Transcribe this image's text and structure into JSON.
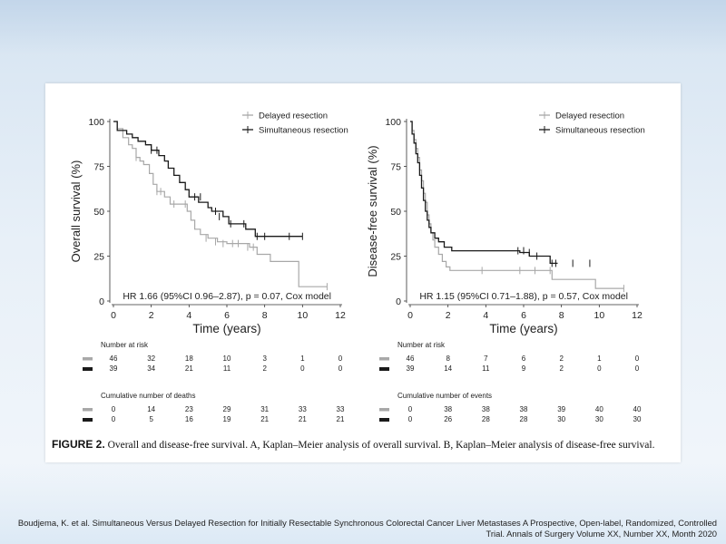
{
  "caption": {
    "figure_label": "FIGURE 2.",
    "text": "Overall and disease-free survival. A, Kaplan–Meier analysis of overall survival. B, Kaplan–Meier analysis of disease-free survival."
  },
  "citation": {
    "line1": "Boudjema, K. et al. Simultaneous Versus Delayed Resection for Initially Resectable Synchronous Colorectal Cancer Liver Metastases A Prospective, Open-label, Randomized, Controlled",
    "line2": "Trial. Annals of Surgery   Volume XX, Number XX, Month 2020"
  },
  "colors": {
    "delayed": "#a8a8a8",
    "simultaneous": "#1a1a1a",
    "background": "#dbe7f3"
  },
  "chart_data": [
    {
      "type": "line",
      "step": true,
      "xlabel": "Time (years)",
      "ylabel": "Overall survival (%)",
      "xlim": [
        0,
        12
      ],
      "ylim": [
        0,
        100
      ],
      "xticks": [
        0,
        2,
        4,
        6,
        8,
        10,
        12
      ],
      "yticks": [
        0,
        25,
        50,
        75,
        100
      ],
      "legend": {
        "position": "top-right",
        "entries": [
          "Delayed resection",
          "Simultaneous resection"
        ]
      },
      "annotation": "HR 1.66  (95%CI 0.96–2.87), p = 0.07, Cox model",
      "series": [
        {
          "name": "Delayed resection",
          "x": [
            0,
            0.2,
            0.5,
            0.8,
            1.0,
            1.2,
            1.4,
            1.6,
            1.9,
            2.1,
            2.3,
            2.7,
            3.0,
            3.6,
            3.9,
            4.1,
            4.3,
            4.6,
            5.0,
            5.5,
            6.0,
            6.8,
            7.2,
            7.6,
            8.3,
            9.0,
            9.8,
            11.3
          ],
          "y": [
            100,
            96,
            91,
            87,
            85,
            80,
            78,
            76,
            71,
            65,
            61,
            58,
            54,
            54,
            50,
            45,
            40,
            37,
            35,
            33,
            32,
            32,
            30,
            26,
            22,
            22,
            8,
            8
          ],
          "censor_x": [
            1.2,
            2.3,
            2.5,
            3.2,
            3.8,
            4.9,
            5.4,
            5.8,
            6.3,
            6.6,
            7.1,
            7.4,
            11.3
          ],
          "censor_y": [
            80,
            61,
            61,
            54,
            54,
            35,
            33,
            32,
            32,
            32,
            30,
            30,
            8
          ]
        },
        {
          "name": "Simultaneous resection",
          "x": [
            0,
            0.2,
            0.7,
            1.0,
            1.3,
            1.7,
            2.0,
            2.4,
            2.7,
            2.9,
            3.2,
            3.5,
            3.8,
            4.0,
            4.5,
            5.0,
            5.2,
            5.8,
            6.1,
            6.5,
            7.0,
            7.5,
            7.8,
            10.0
          ],
          "y": [
            100,
            95,
            93,
            91,
            89,
            87,
            84,
            81,
            78,
            74,
            70,
            66,
            62,
            58,
            55,
            52,
            50,
            47,
            43,
            43,
            40,
            36,
            36,
            36
          ],
          "censor_x": [
            2.0,
            2.3,
            4.3,
            4.6,
            5.4,
            5.6,
            6.2,
            6.9,
            7.6,
            8.0,
            9.3,
            10.0
          ],
          "censor_y": [
            84,
            84,
            58,
            58,
            50,
            47,
            43,
            43,
            36,
            36,
            36,
            36
          ]
        }
      ],
      "risk_tables": [
        {
          "title": "Number at risk",
          "rows": [
            {
              "series": "Delayed resection",
              "values": [
                "46",
                "32",
                "18",
                "10",
                "3",
                "1",
                "0"
              ]
            },
            {
              "series": "Simultaneous resection",
              "values": [
                "39",
                "34",
                "21",
                "11",
                "2",
                "0",
                "0"
              ]
            }
          ]
        },
        {
          "title": "Cumulative number of deaths",
          "rows": [
            {
              "series": "Delayed resection",
              "values": [
                "0",
                "14",
                "23",
                "29",
                "31",
                "33",
                "33"
              ]
            },
            {
              "series": "Simultaneous resection",
              "values": [
                "0",
                "5",
                "16",
                "19",
                "21",
                "21",
                "21"
              ]
            }
          ]
        }
      ]
    },
    {
      "type": "line",
      "step": true,
      "xlabel": "Time (years)",
      "ylabel": "Disease-free survival (%)",
      "xlim": [
        0,
        12
      ],
      "ylim": [
        0,
        100
      ],
      "xticks": [
        0,
        2,
        4,
        6,
        8,
        10,
        12
      ],
      "yticks": [
        0,
        25,
        50,
        75,
        100
      ],
      "legend": {
        "position": "top-right",
        "entries": [
          "Delayed resection",
          "Simultaneous resection"
        ]
      },
      "annotation": "HR 1.15 (95%CI 0.71–1.88), p = 0.57, Cox model",
      "series": [
        {
          "name": "Delayed resection",
          "x": [
            0,
            0.1,
            0.2,
            0.3,
            0.4,
            0.5,
            0.6,
            0.7,
            0.8,
            0.9,
            1.0,
            1.1,
            1.2,
            1.3,
            1.5,
            1.7,
            1.9,
            2.1,
            7.5,
            9.8,
            11.3
          ],
          "y": [
            100,
            95,
            90,
            85,
            80,
            73,
            67,
            60,
            55,
            48,
            43,
            38,
            34,
            30,
            26,
            22,
            19,
            17,
            12,
            7,
            7
          ],
          "censor_x": [
            3.8,
            5.8,
            6.6,
            7.4,
            11.3
          ],
          "censor_y": [
            17,
            17,
            17,
            17,
            7
          ]
        },
        {
          "name": "Simultaneous resection",
          "x": [
            0,
            0.1,
            0.2,
            0.3,
            0.4,
            0.5,
            0.6,
            0.7,
            0.8,
            0.9,
            1.0,
            1.1,
            1.3,
            1.5,
            1.8,
            2.2,
            5.8,
            6.3,
            7.4,
            7.8
          ],
          "y": [
            100,
            93,
            88,
            82,
            77,
            70,
            63,
            56,
            50,
            45,
            41,
            38,
            35,
            33,
            30,
            28,
            27,
            25,
            21,
            21
          ],
          "censor_x": [
            5.7,
            6.0,
            6.3,
            6.7,
            7.5,
            7.7,
            8.6,
            9.5
          ],
          "censor_y": [
            28,
            28,
            27,
            25,
            21,
            21,
            21,
            21
          ]
        }
      ],
      "risk_tables": [
        {
          "title": "Number at risk",
          "rows": [
            {
              "series": "Delayed resection",
              "values": [
                "46",
                "8",
                "7",
                "6",
                "2",
                "1",
                "0"
              ]
            },
            {
              "series": "Simultaneous resection",
              "values": [
                "39",
                "14",
                "11",
                "9",
                "2",
                "0",
                "0"
              ]
            }
          ]
        },
        {
          "title": "Cumulative number of events",
          "rows": [
            {
              "series": "Delayed resection",
              "values": [
                "0",
                "38",
                "38",
                "38",
                "39",
                "40",
                "40"
              ]
            },
            {
              "series": "Simultaneous resection",
              "values": [
                "0",
                "26",
                "28",
                "28",
                "30",
                "30",
                "30"
              ]
            }
          ]
        }
      ]
    }
  ]
}
